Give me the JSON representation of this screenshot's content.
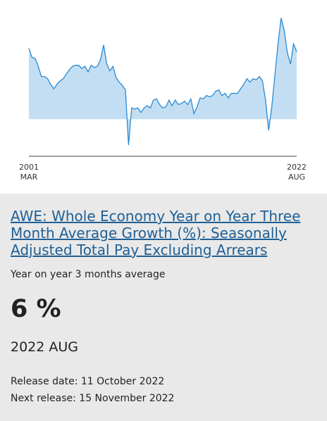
{
  "chart_data": {
    "type": "area",
    "x_labels": [
      {
        "year": "2001",
        "month": "MAR"
      },
      {
        "year": "2022",
        "month": "AUG"
      }
    ],
    "values": [
      6.3,
      5.5,
      5.4,
      4.7,
      3.8,
      3.8,
      3.6,
      3.1,
      2.7,
      3.1,
      3.4,
      3.6,
      4.0,
      4.4,
      4.7,
      4.8,
      4.8,
      4.5,
      4.7,
      4.2,
      4.8,
      4.6,
      4.7,
      5.3,
      6.6,
      4.9,
      4.3,
      4.7,
      3.7,
      3.3,
      3.0,
      2.6,
      -2.3,
      1.0,
      0.9,
      1.0,
      0.6,
      1.0,
      1.2,
      1.0,
      1.7,
      1.8,
      1.3,
      1.0,
      1.1,
      1.7,
      1.2,
      1.7,
      1.3,
      1.4,
      1.6,
      1.3,
      1.8,
      0.5,
      1.1,
      1.9,
      1.8,
      2.1,
      2.0,
      2.1,
      2.5,
      2.6,
      2.1,
      2.3,
      1.9,
      2.3,
      2.3,
      2.3,
      2.7,
      3.1,
      3.6,
      3.3,
      3.6,
      3.5,
      3.8,
      3.4,
      1.7,
      -1.0,
      1.1,
      3.9,
      6.7,
      9.0,
      7.9,
      5.9,
      4.9,
      6.7,
      6.0
    ],
    "color": "#2a8ad4",
    "fill_color": "#c3def2",
    "ylim": [
      -2.8,
      9.6
    ]
  },
  "card": {
    "title": "AWE: Whole Economy Year on Year Three Month Average Growth (%): Seasonally Adjusted Total Pay Excluding Arrears",
    "description": "Year on year 3 months average",
    "latest_value": "6 %",
    "latest_period": "2022 AUG",
    "release_date": "Release date: 11 October 2022",
    "next_release": "Next release: 15 November 2022"
  }
}
